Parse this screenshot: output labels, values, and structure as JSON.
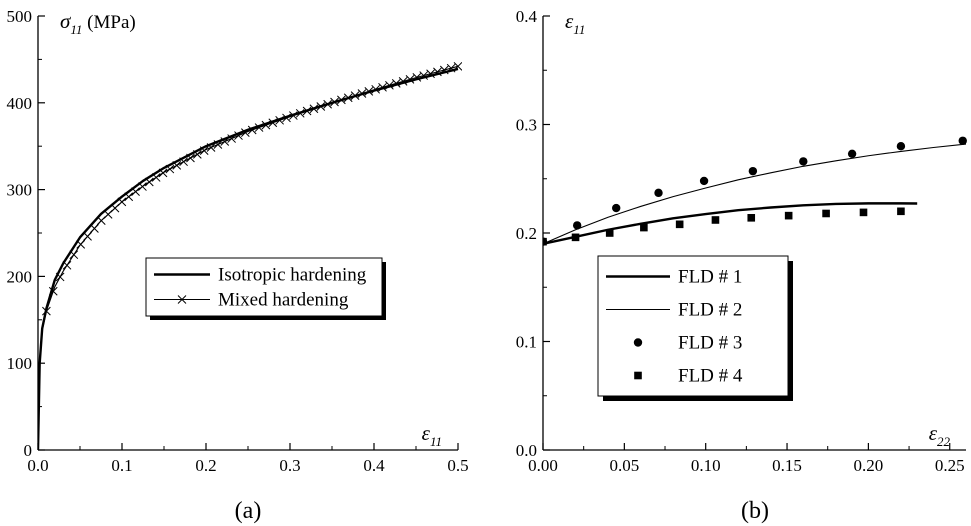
{
  "chart_data": [
    {
      "type": "line",
      "caption": "(a)",
      "ylabel_symbol": "σ",
      "ylabel_sub": "11",
      "ylabel_unit": "(MPa)",
      "xlabel_symbol": "ε",
      "xlabel_sub": "11",
      "xlim": [
        0,
        0.5
      ],
      "ylim": [
        0,
        500
      ],
      "xticks": [
        0.0,
        0.1,
        0.2,
        0.3,
        0.4,
        0.5
      ],
      "xtick_labels": [
        "0.0",
        "0.1",
        "0.2",
        "0.3",
        "0.4",
        "0.5"
      ],
      "yticks": [
        0,
        100,
        200,
        300,
        400,
        500
      ],
      "ytick_labels": [
        "0",
        "100",
        "200",
        "300",
        "400",
        "500"
      ],
      "legend_position": "center",
      "series": [
        {
          "name": "Isotropic hardening",
          "style": "thick-line",
          "x": [
            0,
            0.002,
            0.005,
            0.01,
            0.02,
            0.03,
            0.05,
            0.075,
            0.1,
            0.125,
            0.15,
            0.2,
            0.25,
            0.3,
            0.35,
            0.4,
            0.45,
            0.5
          ],
          "y": [
            0,
            100,
            140,
            163,
            196,
            215,
            245,
            272,
            292,
            310,
            325,
            350,
            369,
            385,
            400,
            414,
            427,
            439
          ]
        },
        {
          "name": "Mixed hardening",
          "style": "line-x-markers",
          "x": [
            0,
            0.002,
            0.005,
            0.01,
            0.02,
            0.03,
            0.05,
            0.075,
            0.1,
            0.125,
            0.15,
            0.2,
            0.25,
            0.3,
            0.35,
            0.4,
            0.45,
            0.5
          ],
          "y": [
            0,
            100,
            138,
            160,
            188,
            206,
            236,
            264,
            286,
            304,
            320,
            346,
            367,
            384,
            400,
            415,
            429,
            442
          ]
        }
      ]
    },
    {
      "type": "line",
      "caption": "(b)",
      "ylabel_symbol": "ε",
      "ylabel_sub": "11",
      "xlabel_symbol": "ε",
      "xlabel_sub": "22",
      "xlim": [
        0,
        0.26
      ],
      "ylim": [
        0,
        0.4
      ],
      "xticks": [
        0.0,
        0.05,
        0.1,
        0.15,
        0.2,
        0.25
      ],
      "xtick_labels": [
        "0.00",
        "0.05",
        "0.10",
        "0.15",
        "0.20",
        "0.25"
      ],
      "yticks": [
        0.0,
        0.1,
        0.2,
        0.3,
        0.4
      ],
      "ytick_labels": [
        "0.0",
        "0.1",
        "0.2",
        "0.3",
        "0.4"
      ],
      "legend_position": "bottom-left",
      "series": [
        {
          "name": "FLD # 1",
          "style": "thick-line",
          "x": [
            0,
            0.02,
            0.04,
            0.06,
            0.08,
            0.1,
            0.12,
            0.14,
            0.16,
            0.18,
            0.2,
            0.22,
            0.23
          ],
          "y": [
            0.19,
            0.1965,
            0.203,
            0.2085,
            0.2135,
            0.2175,
            0.221,
            0.2235,
            0.2255,
            0.2268,
            0.2273,
            0.2273,
            0.2272
          ]
        },
        {
          "name": "FLD # 2",
          "style": "thin-line",
          "x": [
            0,
            0.02,
            0.04,
            0.06,
            0.08,
            0.1,
            0.12,
            0.14,
            0.16,
            0.18,
            0.2,
            0.22,
            0.24,
            0.26
          ],
          "y": [
            0.19,
            0.203,
            0.2145,
            0.2245,
            0.2335,
            0.2415,
            0.249,
            0.2555,
            0.2615,
            0.2665,
            0.2712,
            0.2752,
            0.2788,
            0.282
          ]
        },
        {
          "name": "FLD # 3",
          "style": "circle-markers",
          "x": [
            0,
            0.021,
            0.045,
            0.071,
            0.099,
            0.129,
            0.16,
            0.19,
            0.22,
            0.258
          ],
          "y": [
            0.192,
            0.207,
            0.223,
            0.237,
            0.248,
            0.257,
            0.266,
            0.273,
            0.28,
            0.285
          ]
        },
        {
          "name": "FLD # 4",
          "style": "square-markers",
          "x": [
            0,
            0.02,
            0.041,
            0.062,
            0.084,
            0.106,
            0.128,
            0.151,
            0.174,
            0.197,
            0.22
          ],
          "y": [
            0.192,
            0.196,
            0.2,
            0.205,
            0.208,
            0.212,
            0.214,
            0.216,
            0.218,
            0.219,
            0.22
          ]
        }
      ]
    }
  ]
}
